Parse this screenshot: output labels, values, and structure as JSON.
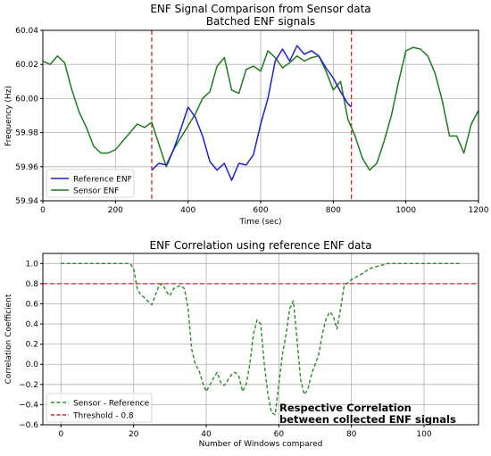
{
  "chart_data": [
    {
      "type": "line",
      "title": "ENF Signal Comparison from Sensor data",
      "subtitle": "Batched ENF signals",
      "xlabel": "Time (sec)",
      "ylabel": "Frequency (Hz)",
      "xlim": [
        0,
        1200
      ],
      "ylim": [
        59.94,
        60.04
      ],
      "xticks": [
        "0",
        "200",
        "400",
        "600",
        "800",
        "1000",
        "1200"
      ],
      "yticks": [
        "59.94",
        "59.96",
        "59.98",
        "60.00",
        "60.02",
        "60.04"
      ],
      "grid": true,
      "legend_position": "lower-left",
      "vlines": [
        300,
        850
      ],
      "vline_color": "#d62728",
      "series": [
        {
          "name": "Reference ENF",
          "color": "#1f1fcc",
          "x": [
            300,
            320,
            340,
            360,
            380,
            400,
            420,
            440,
            460,
            480,
            500,
            520,
            540,
            560,
            580,
            600,
            620,
            640,
            660,
            680,
            700,
            720,
            740,
            760,
            780,
            800,
            820,
            840,
            850
          ],
          "y": [
            59.958,
            59.962,
            59.961,
            59.97,
            59.982,
            59.995,
            59.989,
            59.978,
            59.963,
            59.958,
            59.962,
            59.952,
            59.962,
            59.961,
            59.967,
            59.985,
            60.0,
            60.022,
            60.029,
            60.022,
            60.031,
            60.026,
            60.028,
            60.025,
            60.018,
            60.012,
            60.004,
            59.997,
            59.995
          ]
        },
        {
          "name": "Sensor ENF",
          "color": "#1e7b1e",
          "x": [
            0,
            20,
            40,
            60,
            80,
            100,
            120,
            140,
            160,
            180,
            200,
            220,
            240,
            260,
            280,
            300,
            320,
            340,
            360,
            380,
            400,
            420,
            440,
            460,
            480,
            500,
            520,
            540,
            560,
            580,
            600,
            620,
            640,
            660,
            680,
            700,
            720,
            740,
            760,
            780,
            800,
            820,
            840,
            860,
            880,
            900,
            920,
            940,
            960,
            980,
            1000,
            1020,
            1040,
            1060,
            1080,
            1100,
            1120,
            1140,
            1160,
            1180,
            1200
          ],
          "y": [
            60.022,
            60.02,
            60.025,
            60.021,
            60.005,
            59.992,
            59.983,
            59.972,
            59.968,
            59.968,
            59.97,
            59.975,
            59.98,
            59.985,
            59.983,
            59.986,
            59.973,
            59.96,
            59.97,
            59.977,
            59.984,
            59.991,
            60.0,
            60.004,
            60.019,
            60.024,
            60.005,
            60.003,
            60.017,
            60.019,
            60.016,
            60.028,
            60.024,
            60.018,
            60.021,
            60.025,
            60.022,
            60.024,
            60.025,
            60.016,
            60.005,
            60.01,
            59.988,
            59.978,
            59.965,
            59.958,
            59.962,
            59.975,
            59.99,
            60.01,
            60.028,
            60.03,
            60.029,
            60.025,
            60.015,
            59.999,
            59.978,
            59.978,
            59.968,
            59.985,
            59.993
          ]
        }
      ]
    },
    {
      "type": "line",
      "title": "ENF Correlation using reference ENF data",
      "xlabel": "Number of Windows compared",
      "ylabel": "Correlation Coefficient",
      "xlim": [
        -5,
        115
      ],
      "ylim": [
        -0.6,
        1.1
      ],
      "xticks": [
        "0",
        "20",
        "40",
        "60",
        "80",
        "100"
      ],
      "yticks": [
        "−0.6",
        "−0.4",
        "−0.2",
        "0.0",
        "0.2",
        "0.4",
        "0.6",
        "0.8",
        "1.0"
      ],
      "grid": true,
      "legend_position": "lower-left",
      "series": [
        {
          "name": "Sensor - Reference",
          "color": "#2a8a2a",
          "style": "dashed",
          "x": [
            0,
            5,
            10,
            15,
            19,
            20,
            21,
            22,
            23,
            25,
            27,
            28,
            29,
            30,
            31,
            32,
            33,
            34,
            35,
            36,
            37,
            38,
            39,
            40,
            42,
            43,
            44,
            45,
            47,
            48,
            49,
            50,
            51,
            52,
            53,
            54,
            55,
            56,
            57,
            58,
            59,
            60,
            61,
            62,
            63,
            64,
            65,
            66,
            67,
            68,
            69,
            70,
            71,
            72,
            73,
            74,
            75,
            76,
            77,
            78,
            80,
            83,
            85,
            90,
            100,
            110
          ],
          "y": [
            1.0,
            1.0,
            1.0,
            1.0,
            1.0,
            0.95,
            0.75,
            0.69,
            0.66,
            0.59,
            0.78,
            0.8,
            0.72,
            0.68,
            0.75,
            0.77,
            0.78,
            0.75,
            0.55,
            0.15,
            0.0,
            -0.06,
            -0.18,
            -0.27,
            -0.14,
            -0.08,
            -0.18,
            -0.21,
            -0.1,
            -0.08,
            -0.12,
            -0.27,
            -0.2,
            0.0,
            0.3,
            0.44,
            0.4,
            0.0,
            -0.3,
            -0.48,
            -0.5,
            -0.2,
            0.1,
            0.3,
            0.55,
            0.63,
            0.25,
            -0.15,
            -0.3,
            -0.25,
            -0.1,
            0.0,
            0.1,
            0.3,
            0.45,
            0.52,
            0.48,
            0.35,
            0.55,
            0.78,
            0.84,
            0.9,
            0.95,
            1.0,
            1.0,
            1.0
          ]
        },
        {
          "name": "Threshold - 0.8",
          "color": "#d62728",
          "style": "dashed",
          "hline": 0.8
        }
      ],
      "annotation": [
        "Respective Correlation",
        "between collected ENF signals"
      ]
    }
  ]
}
